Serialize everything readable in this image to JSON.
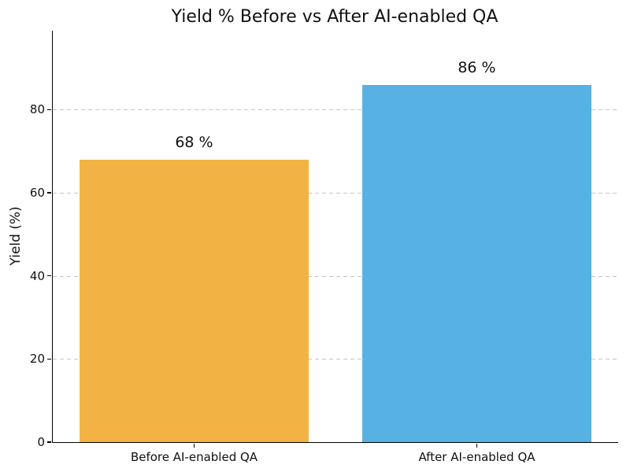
{
  "chart_data": {
    "type": "bar",
    "title": "Yield % Before vs After AI-enabled QA",
    "xlabel": "",
    "ylabel": "Yield (%)",
    "categories": [
      "Before AI-enabled QA",
      "After AI-enabled QA"
    ],
    "values": [
      68,
      86
    ],
    "value_labels": [
      "68 %",
      "86 %"
    ],
    "bar_colors": [
      "#F2B344",
      "#57B2E3"
    ],
    "ylim": [
      0,
      99
    ],
    "yticks": [
      0,
      20,
      40,
      60,
      80
    ],
    "grid": {
      "horizontal": true,
      "style": "dashed",
      "color": "#c4c4c4",
      "axisbelow": true
    },
    "legend": "none",
    "background_color": "#ffffff",
    "spine_color": "#000000",
    "text_color": "#111111",
    "bar_width_fraction": 0.808
  }
}
